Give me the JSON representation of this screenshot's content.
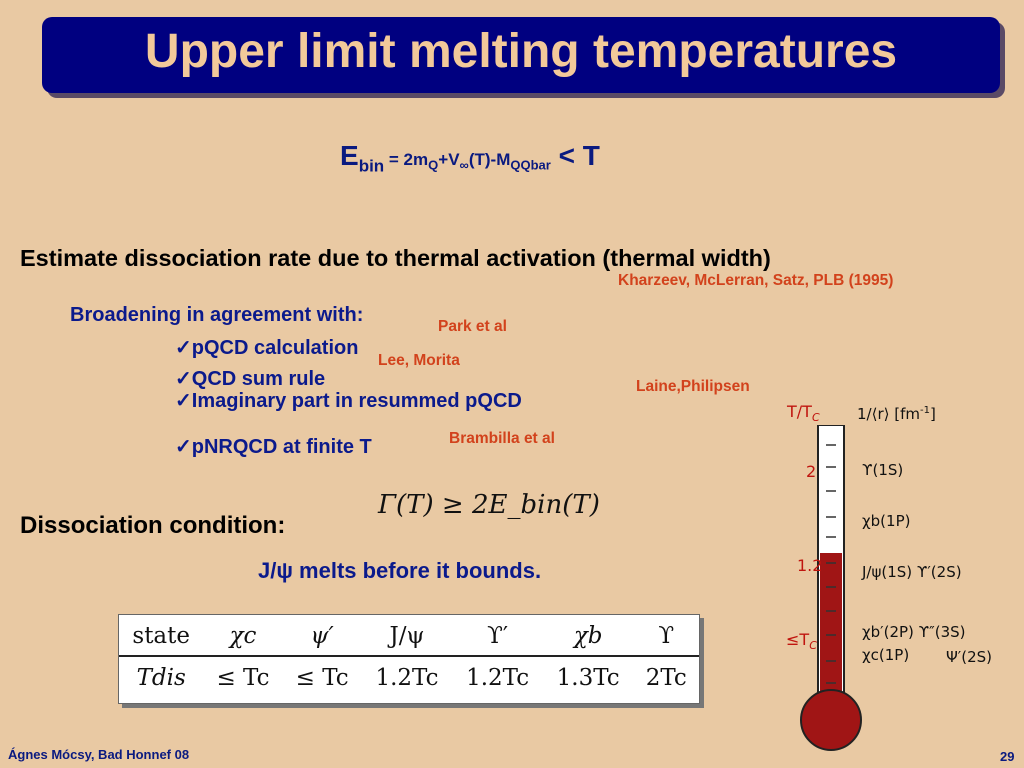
{
  "title": "Upper limit melting temperatures",
  "formula": {
    "lhs": "E",
    "lhs_sub": "bin",
    "eq": " = 2m",
    "m_sub": "Q",
    "v": "+V",
    "inf": "∞",
    "t": "(T)-M",
    "mqq_sub": "QQbar",
    "rhs": " < T"
  },
  "estimate": "Estimate dissociation rate due to thermal activation (thermal width)",
  "kharzeev": "Kharzeev, McLerran, Satz, PLB (1995)",
  "broadening": "Broadening in agreement with:",
  "checks": [
    {
      "text": "pQCD calculation",
      "ref": "Park et al"
    },
    {
      "text": "QCD sum rule",
      "ref": "Lee, Morita"
    },
    {
      "text": "Imaginary part in resummed pQCD",
      "ref": "Laine,Philipsen"
    },
    {
      "text": "pNRQCD at finite T",
      "ref": "Brambilla et al"
    }
  ],
  "check_mark": "✓",
  "gamma_formula": "Γ(T) ≥ 2E_bin(T)",
  "dissociation": "Dissociation condition:",
  "jpsi_melts": "J/ψ melts before it bounds.",
  "table": {
    "head": [
      "state",
      "χc",
      "ψ′",
      "J/ψ",
      "ϒ′",
      "χb",
      "ϒ"
    ],
    "row": [
      "Tdis",
      "≤ Tc",
      "≤ Tc",
      "1.2Tc",
      "1.2Tc",
      "1.3Tc",
      "2Tc"
    ]
  },
  "thermometer": {
    "header_left": "T/T",
    "header_left_sub": "C",
    "header_right": "1/⟨r⟩ [fm",
    "header_right_sup": "-1",
    "header_right_end": "]",
    "scale": [
      "2",
      "1.2",
      "≤T"
    ],
    "scale_sub": "C",
    "states": [
      "ϒ(1S)",
      "χb(1P)",
      "J/ψ(1S) ϒ′(2S)",
      "χb′(2P)  ϒ″(3S)",
      "χc(1P)",
      "Ψ′(2S)"
    ],
    "fill_fraction": 0.56,
    "colors": {
      "tube": "#a01515",
      "outline": "#222222"
    }
  },
  "footer_left": "Ágnes Mócsy, Bad Honnef 08",
  "footer_right": "29",
  "colors": {
    "background": "#e9c9a3",
    "title_bar": "#000080",
    "title_text": "#f2c99a",
    "accent_red": "#d2421c",
    "navy": "#0b1a8c"
  }
}
